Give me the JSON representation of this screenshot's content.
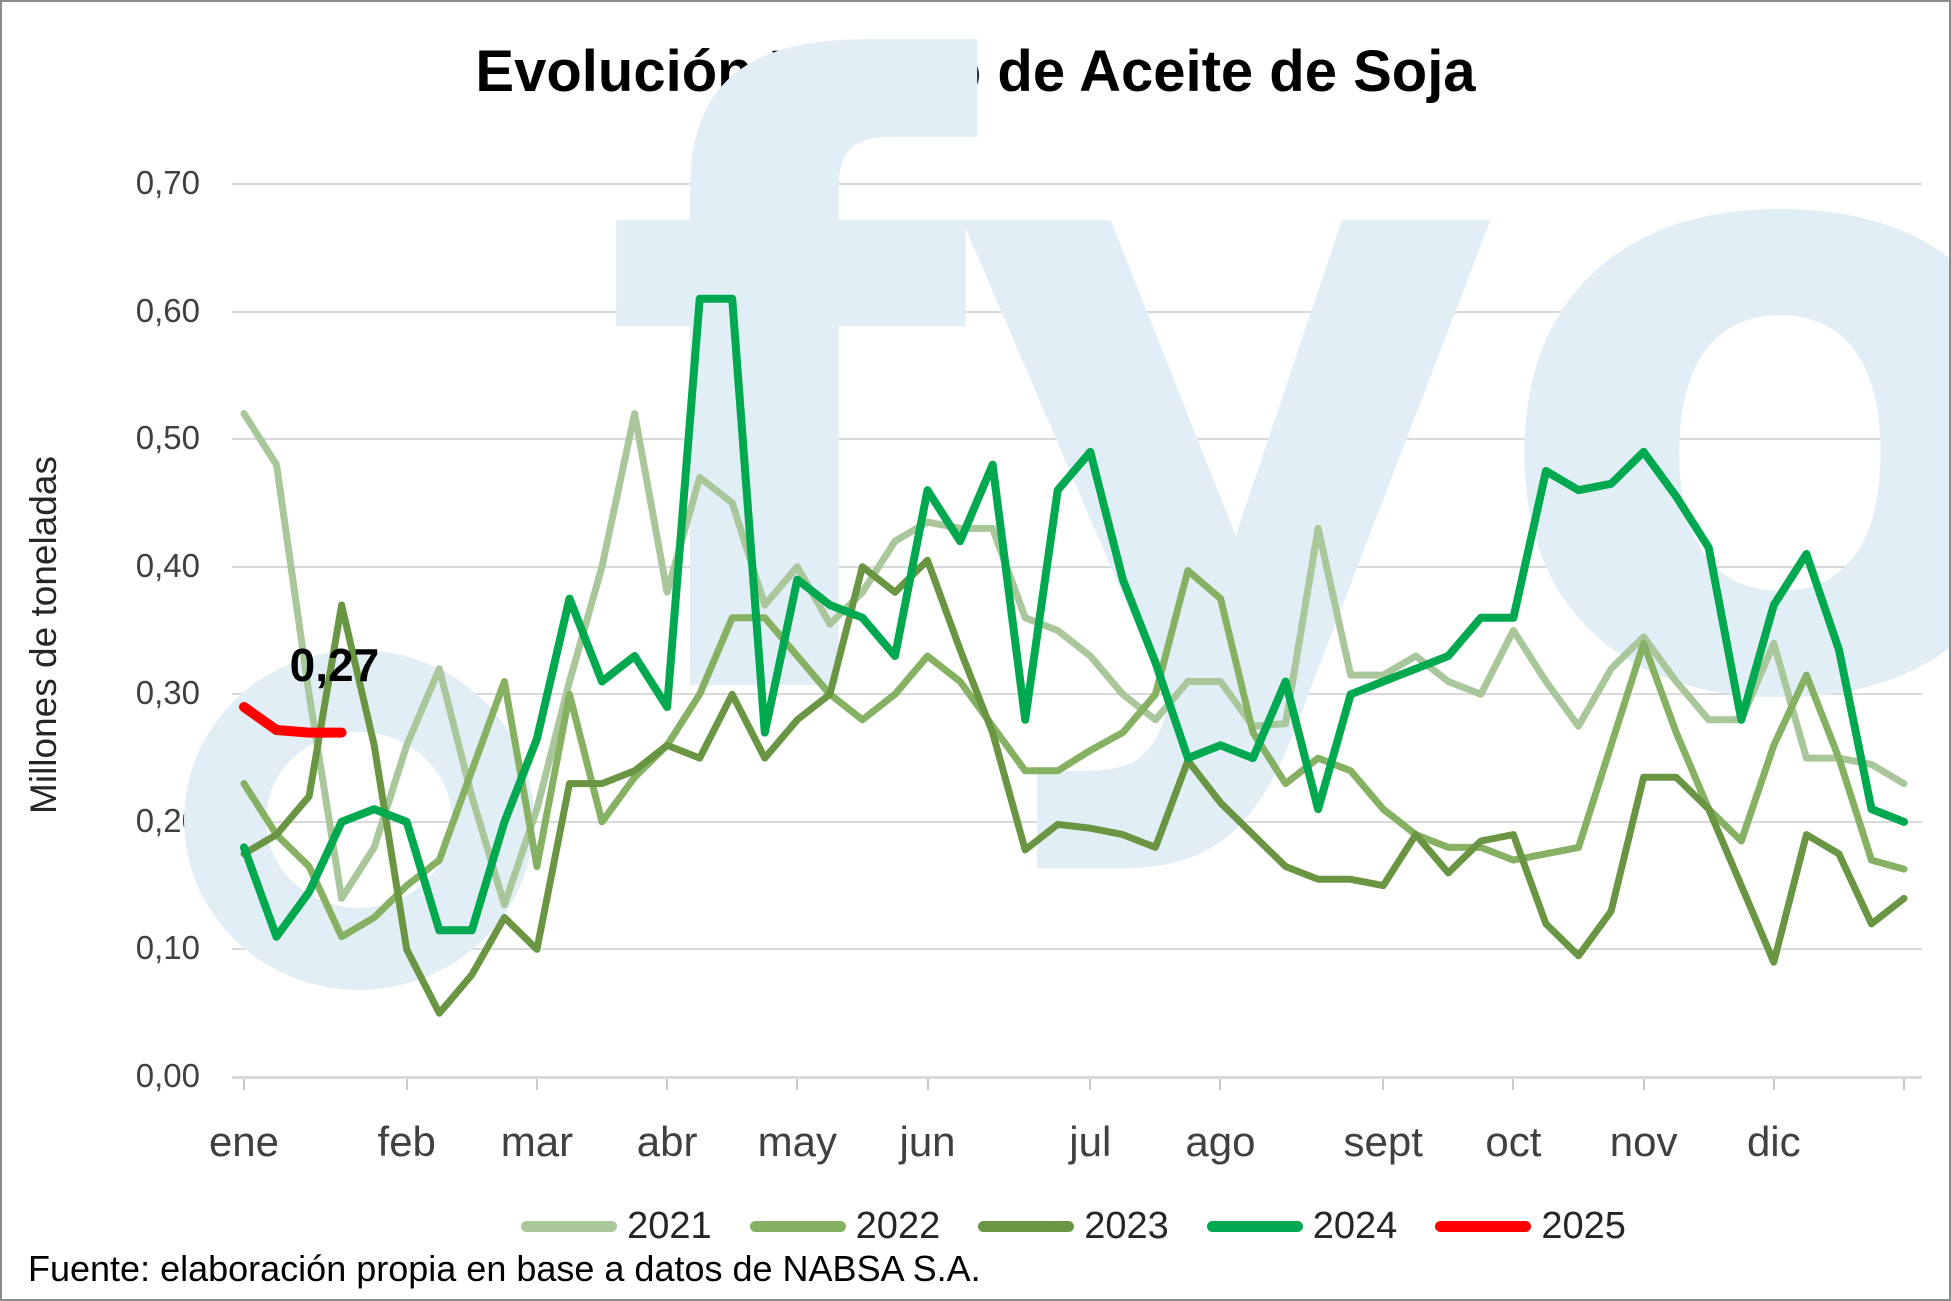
{
  "page": {
    "title": "Evolución Line Up de Aceite de Soja",
    "footer": "Fuente: elaboración propia en base a datos de NABSA S.A.",
    "watermark": "fyo"
  },
  "colors": {
    "gridline": "#d9d9d9",
    "axis_text": "#404040",
    "watermark": "#e2eef6",
    "annotation_text": "#000000"
  },
  "chart_data": {
    "type": "line",
    "title": "Evolución Line Up de Aceite de Soja",
    "xlabel": "",
    "ylabel": "Millones de toneladas",
    "ylim": [
      0.0,
      0.7
    ],
    "grid": true,
    "legend_position": "bottom",
    "decimal_style": "comma",
    "y_ticks": [
      {
        "label": "0,70",
        "value": 0.7
      },
      {
        "label": "0,60",
        "value": 0.6
      },
      {
        "label": "0,50",
        "value": 0.5
      },
      {
        "label": "0,40",
        "value": 0.4
      },
      {
        "label": "0,30",
        "value": 0.3
      },
      {
        "label": "0,20",
        "value": 0.2
      },
      {
        "label": "0,10",
        "value": 0.1
      },
      {
        "label": "0,00",
        "value": 0.0
      }
    ],
    "months": [
      "ene",
      "feb",
      "mar",
      "abr",
      "may",
      "jun",
      "jul",
      "ago",
      "sept",
      "oct",
      "nov",
      "dic"
    ],
    "weeks_per_month": [
      5,
      4,
      4,
      4,
      4,
      5,
      4,
      5,
      4,
      4,
      4,
      5
    ],
    "points_per_full_year": 52,
    "annotation": {
      "text": "0,27",
      "series": "2025",
      "point_index": 3,
      "value": 0.27
    },
    "series": [
      {
        "name": "2021",
        "color": "#a9c79a",
        "width": 7,
        "values": [
          0.52,
          0.48,
          0.3,
          0.14,
          0.18,
          0.26,
          0.32,
          0.22,
          0.135,
          0.21,
          0.31,
          0.4,
          0.52,
          0.38,
          0.47,
          0.45,
          0.37,
          0.4,
          0.355,
          0.38,
          0.42,
          0.435,
          0.43,
          0.43,
          0.36,
          0.35,
          0.33,
          0.3,
          0.28,
          0.31,
          0.31,
          0.275,
          0.277,
          0.43,
          0.315,
          0.315,
          0.33,
          0.31,
          0.3,
          0.35,
          0.31,
          0.275,
          0.32,
          0.345,
          0.31,
          0.28,
          0.28,
          0.34,
          0.25,
          0.25,
          0.245,
          0.23
        ]
      },
      {
        "name": "2022",
        "color": "#86b163",
        "width": 7,
        "values": [
          0.23,
          0.19,
          0.165,
          0.11,
          0.125,
          0.15,
          0.17,
          0.24,
          0.31,
          0.165,
          0.3,
          0.2,
          0.235,
          0.26,
          0.3,
          0.36,
          0.36,
          0.33,
          0.3,
          0.28,
          0.3,
          0.33,
          0.31,
          0.275,
          0.24,
          0.24,
          0.256,
          0.27,
          0.3,
          0.397,
          0.375,
          0.27,
          0.23,
          0.25,
          0.24,
          0.21,
          0.19,
          0.18,
          0.18,
          0.17,
          0.175,
          0.18,
          0.26,
          0.34,
          0.27,
          0.21,
          0.185,
          0.26,
          0.315,
          0.25,
          0.17,
          0.163
        ]
      },
      {
        "name": "2023",
        "color": "#6a9643",
        "width": 7,
        "values": [
          0.175,
          0.19,
          0.22,
          0.37,
          0.26,
          0.1,
          0.05,
          0.08,
          0.125,
          0.1,
          0.23,
          0.23,
          0.24,
          0.26,
          0.25,
          0.3,
          0.25,
          0.28,
          0.3,
          0.4,
          0.38,
          0.405,
          0.335,
          0.27,
          0.178,
          0.198,
          0.195,
          0.19,
          0.18,
          0.248,
          0.215,
          0.19,
          0.165,
          0.155,
          0.155,
          0.15,
          0.19,
          0.16,
          0.185,
          0.19,
          0.12,
          0.095,
          0.13,
          0.235,
          0.235,
          0.21,
          0.15,
          0.09,
          0.19,
          0.175,
          0.12,
          0.14
        ]
      },
      {
        "name": "2024",
        "color": "#00a94f",
        "width": 8,
        "values": [
          0.18,
          0.11,
          0.145,
          0.2,
          0.21,
          0.2,
          0.115,
          0.115,
          0.2,
          0.265,
          0.375,
          0.31,
          0.33,
          0.29,
          0.61,
          0.61,
          0.27,
          0.39,
          0.37,
          0.36,
          0.33,
          0.46,
          0.42,
          0.48,
          0.28,
          0.46,
          0.49,
          0.39,
          0.325,
          0.25,
          0.26,
          0.25,
          0.31,
          0.21,
          0.3,
          0.31,
          0.32,
          0.33,
          0.36,
          0.36,
          0.475,
          0.46,
          0.465,
          0.49,
          0.455,
          0.415,
          0.28,
          0.37,
          0.41,
          0.335,
          0.21,
          0.2
        ]
      },
      {
        "name": "2025",
        "color": "#fe0000",
        "width": 10,
        "values": [
          0.29,
          0.272,
          0.27,
          0.27
        ]
      }
    ]
  }
}
